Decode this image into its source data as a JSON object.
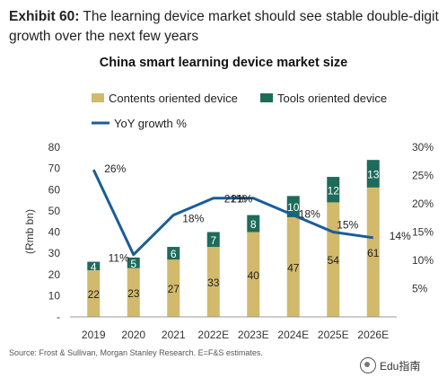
{
  "exhibit": {
    "label": "Exhibit 60:",
    "text": "The learning device market should see stable double-digit growth over the next few years"
  },
  "source": "Source: Frost & Sullivan, Morgan Stanley Research. E=F&S estimates.",
  "watermark": "Edu指南",
  "colors": {
    "contents": "#d2b96c",
    "tools": "#1e6b5a",
    "line": "#1a5c99",
    "axis_text": "#333333"
  },
  "chart_data": {
    "type": "bar",
    "title": "China smart learning device market size",
    "categories": [
      "2019",
      "2020",
      "2021",
      "2022E",
      "2023E",
      "2024E",
      "2025E",
      "2026E"
    ],
    "series": [
      {
        "name": "Contents oriented device",
        "type": "bar",
        "stack": "total",
        "axis": "left",
        "values": [
          22,
          23,
          27,
          33,
          40,
          47,
          54,
          61
        ],
        "labels": [
          "22",
          "23",
          "27",
          "33",
          "40",
          "47",
          "54",
          "61"
        ]
      },
      {
        "name": "Tools oriented device",
        "type": "bar",
        "stack": "total",
        "axis": "left",
        "values": [
          4,
          5,
          6,
          7,
          8,
          10,
          12,
          13
        ],
        "labels": [
          "4",
          "5",
          "6",
          "7",
          "8",
          "10",
          "12",
          "13"
        ]
      },
      {
        "name": "YoY growth %",
        "type": "line",
        "axis": "right",
        "values": [
          26,
          11,
          18,
          21,
          21,
          18,
          15,
          14
        ],
        "labels": [
          "26%",
          "11%",
          "18%",
          "21%",
          "21%",
          "18%",
          "15%",
          "14%"
        ]
      }
    ],
    "ylabel": "(Rmb bn)",
    "ylim": [
      0,
      80
    ],
    "yticks": [
      "-",
      "10",
      "20",
      "30",
      "40",
      "50",
      "60",
      "70",
      "80"
    ],
    "y2lim": [
      0,
      30
    ],
    "y2ticks": [
      "",
      "5%",
      "10%",
      "15%",
      "20%",
      "25%",
      "30%"
    ],
    "legend_position": "top-left",
    "grid": false
  }
}
